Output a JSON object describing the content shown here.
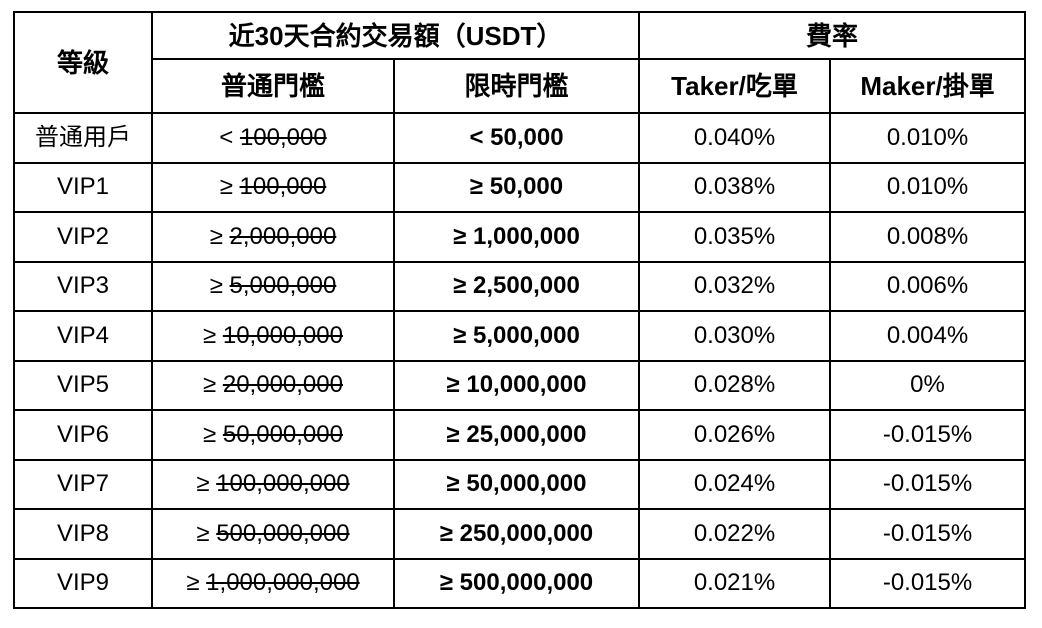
{
  "header": {
    "level": "等級",
    "volume_group": "近30天合約交易額（USDT）",
    "fee_group": "費率",
    "regular_threshold": "普通門檻",
    "limited_threshold": "限時門檻",
    "taker": "Taker/吃單",
    "maker": "Maker/掛單"
  },
  "rows": [
    {
      "tier": "普通用戶",
      "regular_prefix": "<",
      "regular_value": "100,000",
      "limited": "< 50,000",
      "taker": "0.040%",
      "maker": "0.010%"
    },
    {
      "tier": "VIP1",
      "regular_prefix": "≥",
      "regular_value": "100,000",
      "limited": "≥ 50,000",
      "taker": "0.038%",
      "maker": "0.010%"
    },
    {
      "tier": "VIP2",
      "regular_prefix": "≥",
      "regular_value": "2,000,000",
      "limited": "≥ 1,000,000",
      "taker": "0.035%",
      "maker": "0.008%"
    },
    {
      "tier": "VIP3",
      "regular_prefix": "≥",
      "regular_value": "5,000,000",
      "limited": "≥ 2,500,000",
      "taker": "0.032%",
      "maker": "0.006%"
    },
    {
      "tier": "VIP4",
      "regular_prefix": "≥",
      "regular_value": "10,000,000",
      "limited": "≥ 5,000,000",
      "taker": "0.030%",
      "maker": "0.004%"
    },
    {
      "tier": "VIP5",
      "regular_prefix": "≥",
      "regular_value": "20,000,000",
      "limited": "≥ 10,000,000",
      "taker": "0.028%",
      "maker": "0%"
    },
    {
      "tier": "VIP6",
      "regular_prefix": "≥",
      "regular_value": "50,000,000",
      "limited": "≥ 25,000,000",
      "taker": "0.026%",
      "maker": "-0.015%"
    },
    {
      "tier": "VIP7",
      "regular_prefix": "≥",
      "regular_value": "100,000,000",
      "limited": "≥ 50,000,000",
      "taker": "0.024%",
      "maker": "-0.015%"
    },
    {
      "tier": "VIP8",
      "regular_prefix": "≥",
      "regular_value": "500,000,000",
      "limited": "≥ 250,000,000",
      "taker": "0.022%",
      "maker": "-0.015%"
    },
    {
      "tier": "VIP9",
      "regular_prefix": "≥",
      "regular_value": "1,000,000,000",
      "limited": "≥ 500,000,000",
      "taker": "0.021%",
      "maker": "-0.015%"
    }
  ]
}
